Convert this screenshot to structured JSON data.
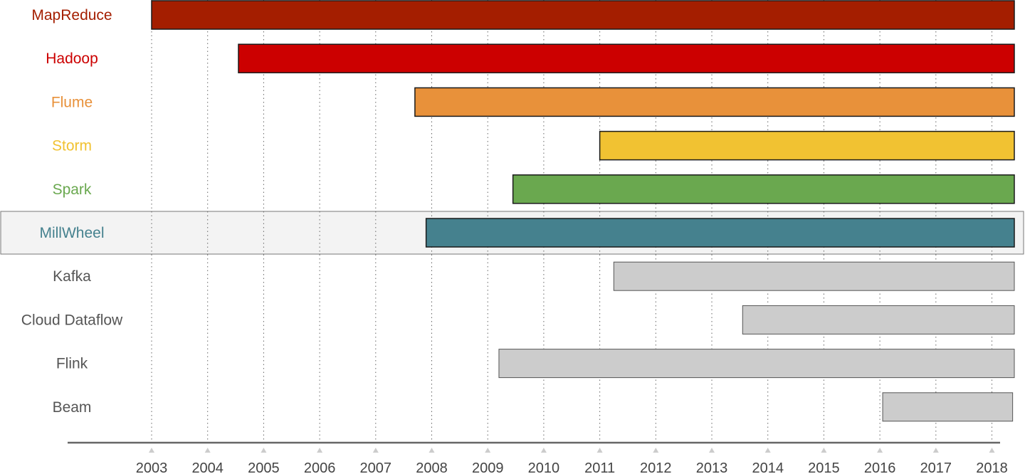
{
  "chart_data": {
    "type": "bar",
    "orientation": "horizontal-timeline",
    "title": "",
    "xlabel": "",
    "ylabel": "",
    "xlim": [
      2003,
      2018.4
    ],
    "grid": true,
    "legend": "none",
    "x_ticks": [
      "2003",
      "2004",
      "2005",
      "2006",
      "2007",
      "2008",
      "2009",
      "2010",
      "2011",
      "2012",
      "2013",
      "2014",
      "2015",
      "2016",
      "2017",
      "2018"
    ],
    "highlighted_row": "MillWheel",
    "rows": [
      {
        "label": "MapReduce",
        "start": 2003.0,
        "end": 2018.4,
        "color": "#a41e00",
        "label_color": "#a41e00"
      },
      {
        "label": "Hadoop",
        "start": 2004.55,
        "end": 2018.4,
        "color": "#cc0000",
        "label_color": "#cc0000"
      },
      {
        "label": "Flume",
        "start": 2007.7,
        "end": 2018.4,
        "color": "#e8913a",
        "label_color": "#e8913a"
      },
      {
        "label": "Storm",
        "start": 2011.0,
        "end": 2018.4,
        "color": "#f1c232",
        "label_color": "#f1c232"
      },
      {
        "label": "Spark",
        "start": 2009.45,
        "end": 2018.4,
        "color": "#6aa84f",
        "label_color": "#6aa84f"
      },
      {
        "label": "MillWheel",
        "start": 2007.9,
        "end": 2018.4,
        "color": "#45818e",
        "label_color": "#45818e"
      },
      {
        "label": "Kafka",
        "start": 2011.25,
        "end": 2018.4,
        "color": "#cccccc",
        "label_color": "#555555"
      },
      {
        "label": "Cloud Dataflow",
        "start": 2013.55,
        "end": 2018.4,
        "color": "#cccccc",
        "label_color": "#555555"
      },
      {
        "label": "Flink",
        "start": 2009.2,
        "end": 2018.4,
        "color": "#cccccc",
        "label_color": "#555555"
      },
      {
        "label": "Beam",
        "start": 2016.05,
        "end": 2018.37,
        "color": "#cccccc",
        "label_color": "#555555"
      }
    ]
  }
}
